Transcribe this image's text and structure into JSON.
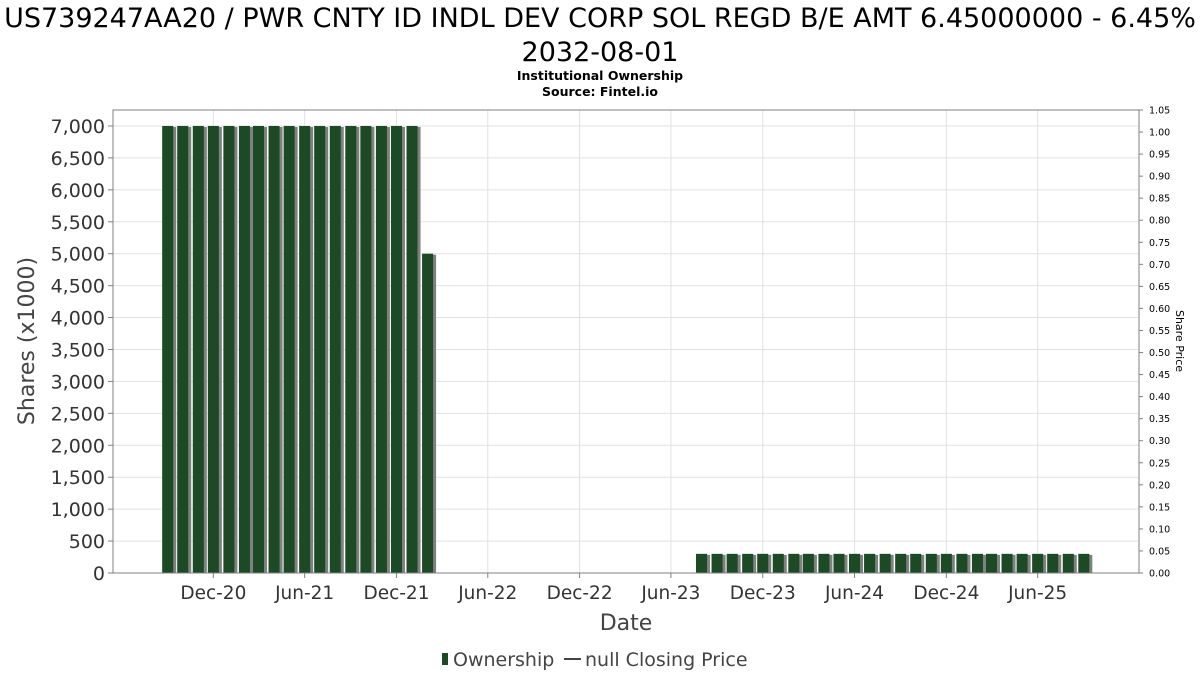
{
  "chart_data": {
    "type": "bar",
    "title": "US739247AA20 / PWR CNTY ID INDL DEV CORP SOL REGD B/E AMT 6.45000000 - 6.45% 2032-08-01",
    "subtitle": [
      "Institutional Ownership",
      "Source: Fintel.io"
    ],
    "xlabel": "Date",
    "ylabel": "Shares (x1000)",
    "y2label": "Share Price",
    "ylim": [
      0,
      7250
    ],
    "y2lim": [
      0,
      1.05
    ],
    "yticks": [
      0,
      500,
      1000,
      1500,
      2000,
      2500,
      3000,
      3500,
      4000,
      4500,
      5000,
      5500,
      6000,
      6500,
      7000
    ],
    "ytick_labels": [
      "0",
      "500",
      "1,000",
      "1,500",
      "2,000",
      "2,500",
      "3,000",
      "3,500",
      "4,000",
      "4,500",
      "5,000",
      "5,500",
      "6,000",
      "6,500",
      "7,000"
    ],
    "y2ticks": [
      0,
      0.05,
      0.1,
      0.15,
      0.2,
      0.25,
      0.3,
      0.35,
      0.4,
      0.45,
      0.5,
      0.55,
      0.6,
      0.65,
      0.7,
      0.75,
      0.8,
      0.85,
      0.9,
      0.95,
      1.0,
      1.05
    ],
    "y2tick_labels": [
      "0.00",
      "0.05",
      "0.10",
      "0.15",
      "0.20",
      "0.25",
      "0.30",
      "0.35",
      "0.40",
      "0.45",
      "0.50",
      "0.55",
      "0.60",
      "0.65",
      "0.70",
      "0.75",
      "0.80",
      "0.85",
      "0.90",
      "0.95",
      "1.00",
      "1.05"
    ],
    "xlim": [
      "2020-05-15",
      "2025-12-20"
    ],
    "xticks": [
      "2020-12-01",
      "2021-06-01",
      "2021-12-01",
      "2022-06-01",
      "2022-12-01",
      "2023-06-01",
      "2023-12-01",
      "2024-06-01",
      "2024-12-01",
      "2025-06-01"
    ],
    "xtick_labels": [
      "Dec-20",
      "Jun-21",
      "Dec-21",
      "Jun-22",
      "Dec-22",
      "Jun-23",
      "Dec-23",
      "Jun-24",
      "Dec-24",
      "Jun-25"
    ],
    "grid": true,
    "legend_position": "bottom-center",
    "series": [
      {
        "name": "Ownership",
        "color": "#1c4a24",
        "shadow_color": "#808080",
        "bar_width_days": 22,
        "points": [
          {
            "x": "2020-09-01",
            "y": 7000
          },
          {
            "x": "2020-10-01",
            "y": 7000
          },
          {
            "x": "2020-11-01",
            "y": 7000
          },
          {
            "x": "2020-12-01",
            "y": 7000
          },
          {
            "x": "2021-01-01",
            "y": 7000
          },
          {
            "x": "2021-02-01",
            "y": 7000
          },
          {
            "x": "2021-03-01",
            "y": 7000
          },
          {
            "x": "2021-04-01",
            "y": 7000
          },
          {
            "x": "2021-05-01",
            "y": 7000
          },
          {
            "x": "2021-06-01",
            "y": 7000
          },
          {
            "x": "2021-07-01",
            "y": 7000
          },
          {
            "x": "2021-08-01",
            "y": 7000
          },
          {
            "x": "2021-09-01",
            "y": 7000
          },
          {
            "x": "2021-10-01",
            "y": 7000
          },
          {
            "x": "2021-11-01",
            "y": 7000
          },
          {
            "x": "2021-12-01",
            "y": 7000
          },
          {
            "x": "2022-01-01",
            "y": 7000
          },
          {
            "x": "2022-02-01",
            "y": 5000
          },
          {
            "x": "2023-08-01",
            "y": 300
          },
          {
            "x": "2023-09-01",
            "y": 300
          },
          {
            "x": "2023-10-01",
            "y": 300
          },
          {
            "x": "2023-11-01",
            "y": 300
          },
          {
            "x": "2023-12-01",
            "y": 300
          },
          {
            "x": "2024-01-01",
            "y": 300
          },
          {
            "x": "2024-02-01",
            "y": 300
          },
          {
            "x": "2024-03-01",
            "y": 300
          },
          {
            "x": "2024-04-01",
            "y": 300
          },
          {
            "x": "2024-05-01",
            "y": 300
          },
          {
            "x": "2024-06-01",
            "y": 300
          },
          {
            "x": "2024-07-01",
            "y": 300
          },
          {
            "x": "2024-08-01",
            "y": 300
          },
          {
            "x": "2024-09-01",
            "y": 300
          },
          {
            "x": "2024-10-01",
            "y": 300
          },
          {
            "x": "2024-11-01",
            "y": 300
          },
          {
            "x": "2024-12-01",
            "y": 300
          },
          {
            "x": "2025-01-01",
            "y": 300
          },
          {
            "x": "2025-02-01",
            "y": 300
          },
          {
            "x": "2025-03-01",
            "y": 300
          },
          {
            "x": "2025-04-01",
            "y": 300
          },
          {
            "x": "2025-05-01",
            "y": 300
          },
          {
            "x": "2025-06-01",
            "y": 300
          },
          {
            "x": "2025-07-01",
            "y": 300
          },
          {
            "x": "2025-08-01",
            "y": 300
          },
          {
            "x": "2025-09-01",
            "y": 300
          }
        ]
      },
      {
        "name": "null Closing Price",
        "color": "#444444",
        "points": []
      }
    ],
    "legend": [
      "Ownership",
      "null Closing Price"
    ]
  }
}
